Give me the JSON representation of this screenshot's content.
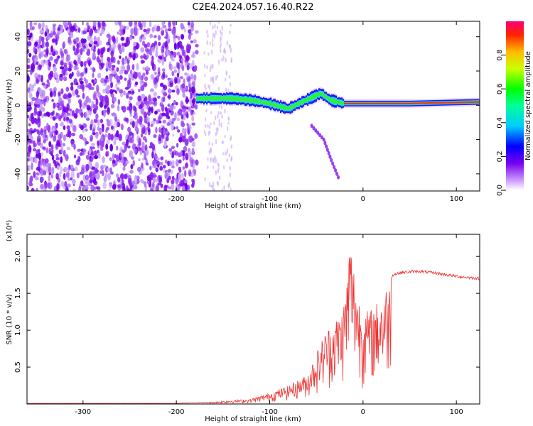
{
  "title": "C2E4.2024.057.16.40.R22",
  "chart_data": [
    {
      "type": "heatmap",
      "xlabel": "Height of straight line (km)",
      "ylabel": "Frequency (Hz)",
      "xlim": [
        -360,
        125
      ],
      "ylim": [
        -50,
        49
      ],
      "xticks": [
        -300,
        -200,
        -100,
        0,
        100
      ],
      "yticks": [
        -40,
        -20,
        0,
        20,
        40
      ],
      "grid": false,
      "colorbar": {
        "label": "Normalized spectral amplitude",
        "range": [
          0,
          1
        ],
        "ticks": [
          "0.0",
          "0.2",
          "0.4",
          "0.6",
          "0.8"
        ]
      },
      "features": {
        "noise_region_x": [
          -360,
          -178
        ],
        "sparse_streak_x": [
          -170,
          -140
        ],
        "main_line_path": [
          {
            "x": -178,
            "y": 4
          },
          {
            "x": -140,
            "y": 4
          },
          {
            "x": -120,
            "y": 3
          },
          {
            "x": -100,
            "y": 1
          },
          {
            "x": -80,
            "y": -2
          },
          {
            "x": -65,
            "y": 2
          },
          {
            "x": -45,
            "y": 7
          },
          {
            "x": -35,
            "y": 3
          },
          {
            "x": -20,
            "y": 1
          },
          {
            "x": 0,
            "y": 1
          },
          {
            "x": 50,
            "y": 1
          },
          {
            "x": 125,
            "y": 2
          }
        ],
        "chirp_path": [
          {
            "x": -55,
            "y": -12
          },
          {
            "x": -42,
            "y": -20
          },
          {
            "x": -34,
            "y": -32
          },
          {
            "x": -25,
            "y": -44
          }
        ]
      }
    },
    {
      "type": "line",
      "xlabel": "Height of straight line (km)",
      "ylabel": "SNR (10 * v/v)",
      "y_multiplier": "(x10⁴)",
      "xlim": [
        -360,
        125
      ],
      "ylim": [
        0,
        2.3
      ],
      "xticks": [
        -300,
        -200,
        -100,
        0,
        100
      ],
      "yticks": [
        0.5,
        1.0,
        1.5,
        2.0
      ],
      "ytick_labels": [
        "0.5",
        "1.0",
        "1.5",
        "2.0"
      ],
      "grid": false,
      "series": [
        {
          "color": "#ee3333",
          "envelope": [
            {
              "x": -360,
              "y": 0.01
            },
            {
              "x": -200,
              "y": 0.01
            },
            {
              "x": -160,
              "y": 0.03
            },
            {
              "x": -120,
              "y": 0.07
            },
            {
              "x": -100,
              "y": 0.15
            },
            {
              "x": -80,
              "y": 0.25
            },
            {
              "x": -60,
              "y": 0.4
            },
            {
              "x": -50,
              "y": 0.7
            },
            {
              "x": -40,
              "y": 1.0
            },
            {
              "x": -30,
              "y": 1.15
            },
            {
              "x": -22,
              "y": 1.3
            },
            {
              "x": -18,
              "y": 1.6
            },
            {
              "x": -14,
              "y": 2.3
            },
            {
              "x": -10,
              "y": 1.9
            },
            {
              "x": -5,
              "y": 1.5
            },
            {
              "x": 0,
              "y": 1.25
            },
            {
              "x": 10,
              "y": 1.3
            },
            {
              "x": 18,
              "y": 1.45
            },
            {
              "x": 25,
              "y": 1.6
            },
            {
              "x": 32,
              "y": 1.75
            },
            {
              "x": 40,
              "y": 1.78
            },
            {
              "x": 60,
              "y": 1.8
            },
            {
              "x": 80,
              "y": 1.77
            },
            {
              "x": 100,
              "y": 1.73
            },
            {
              "x": 125,
              "y": 1.7
            }
          ]
        }
      ]
    }
  ]
}
